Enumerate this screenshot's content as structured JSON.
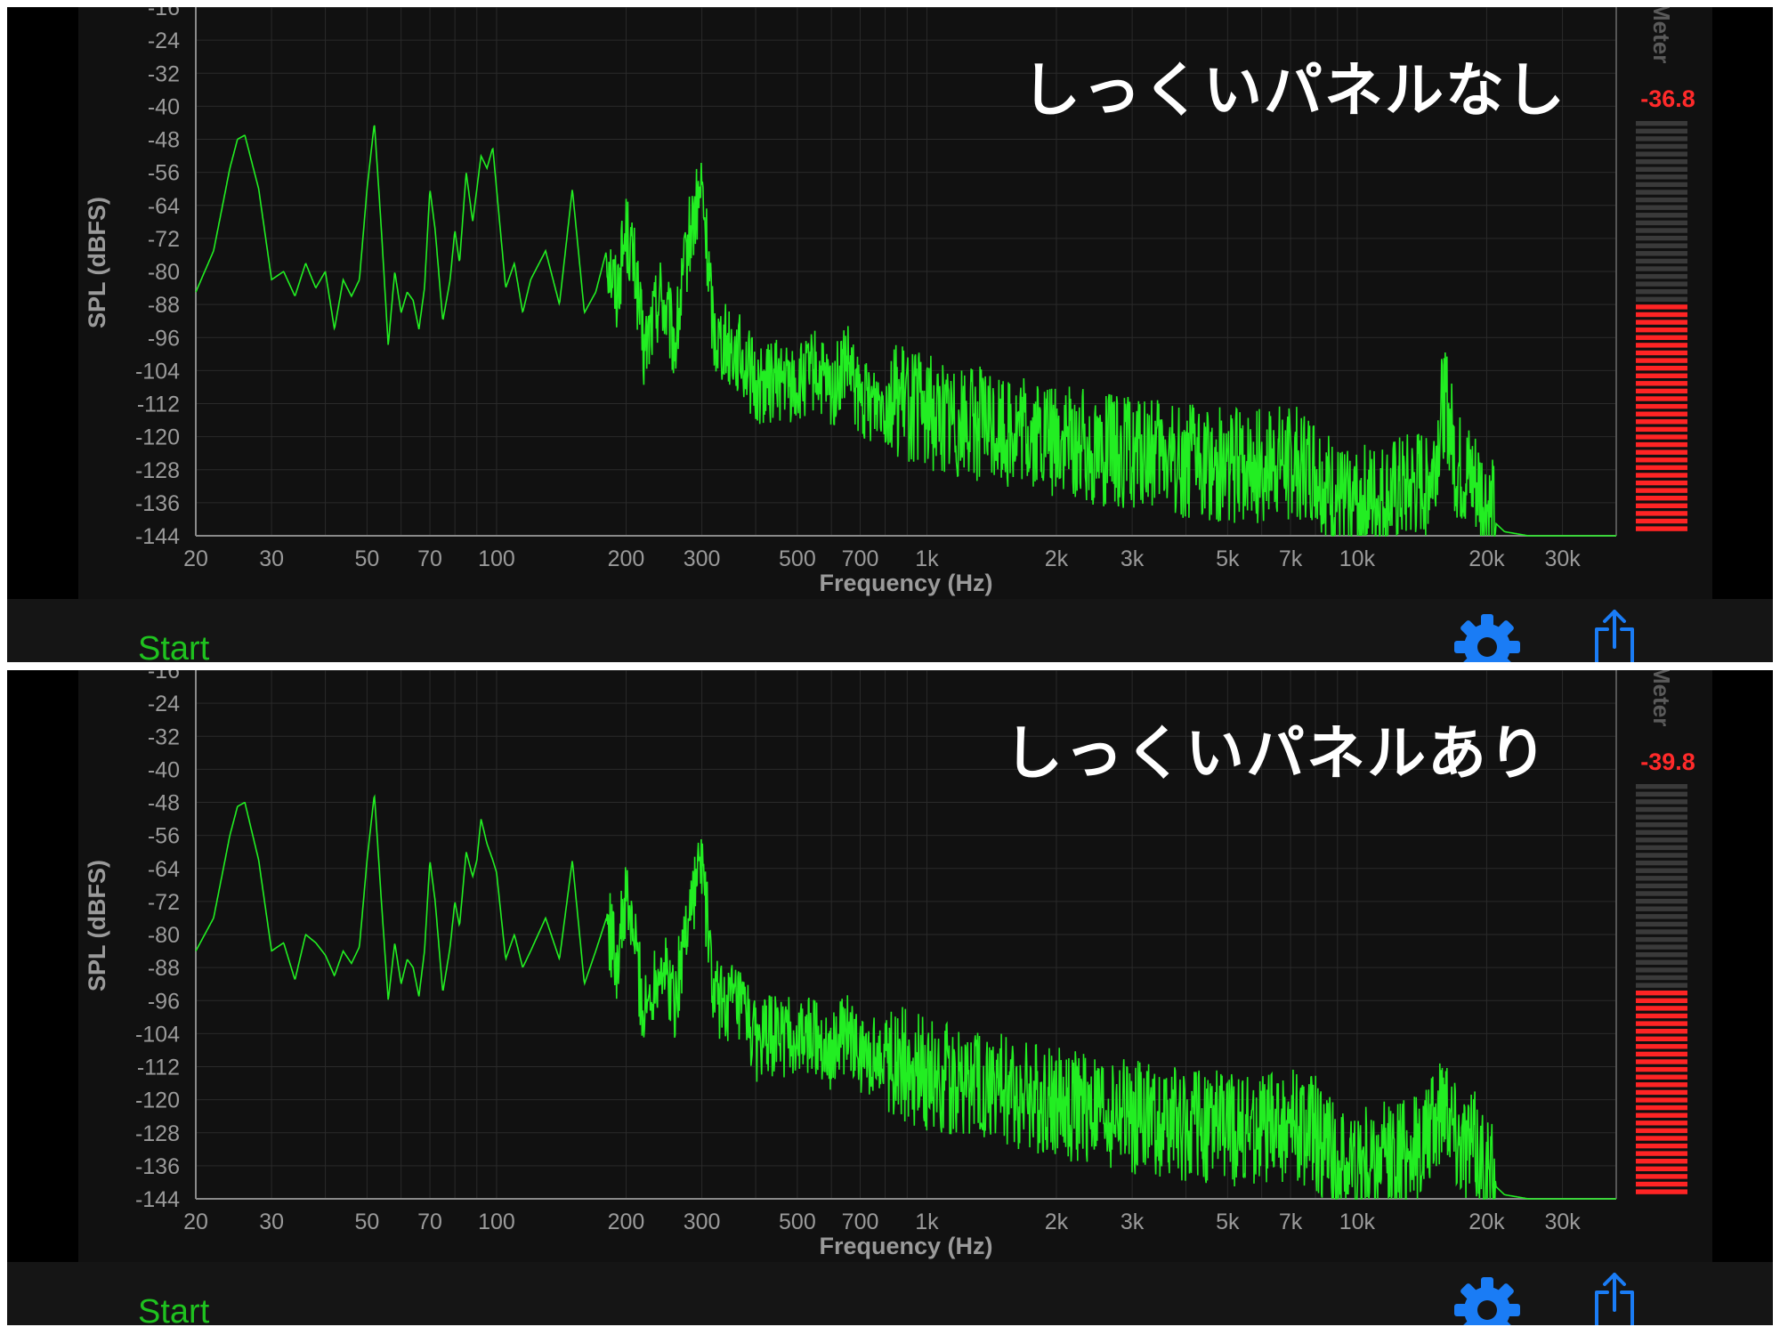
{
  "panels": [
    {
      "title": "しっくいパネルなし",
      "meter_label": "Meter (dBFS)",
      "meter_value": "-36.8",
      "meter_level_db": -36.8,
      "start_label": "Start"
    },
    {
      "title": "しっくいパネルあり",
      "meter_label": "Meter (dBFS)",
      "meter_value": "-39.8",
      "meter_level_db": -39.8,
      "start_label": "Start"
    }
  ],
  "colors": {
    "trace": "#22ee22",
    "grid": "#2a2a2a",
    "axis_text": "#9a9a9a",
    "meter_on": "#ff2424",
    "meter_off": "#3a3a3a",
    "icon_blue": "#1a7cf5",
    "start_green": "#1fc21f"
  },
  "icons": [
    "gear-icon",
    "share-icon"
  ],
  "chart_data": [
    {
      "type": "line",
      "xlabel": "Frequency (Hz)",
      "ylabel": "SPL (dBFS)",
      "x_scale": "log",
      "xlim": [
        20,
        40000
      ],
      "ylim": [
        -144,
        -16
      ],
      "x_ticks": [
        20,
        30,
        50,
        70,
        100,
        200,
        300,
        500,
        700,
        1000,
        2000,
        3000,
        5000,
        7000,
        10000,
        20000,
        30000
      ],
      "x_tick_labels": [
        "20",
        "30",
        "50",
        "70",
        "100",
        "200",
        "300",
        "500",
        "700",
        "1k",
        "2k",
        "3k",
        "5k",
        "7k",
        "10k",
        "20k",
        "30k"
      ],
      "y_ticks": [
        -16,
        -24,
        -32,
        -40,
        -48,
        -56,
        -64,
        -72,
        -80,
        -88,
        -96,
        -104,
        -112,
        -120,
        -128,
        -136,
        -144
      ],
      "grid": true,
      "series": [
        {
          "x": [
            20,
            22,
            24,
            25,
            26,
            28,
            30,
            32,
            34,
            36,
            38,
            40,
            42,
            44,
            46,
            48,
            50,
            52,
            54,
            56,
            58,
            60,
            62,
            64,
            66,
            68,
            70,
            72,
            75,
            78,
            80,
            82,
            85,
            88,
            90,
            92,
            95,
            98,
            100,
            105,
            110,
            115,
            120,
            130,
            140,
            150,
            160,
            170,
            180,
            190,
            200,
            210,
            220,
            240,
            260,
            280,
            300,
            320,
            350,
            380,
            400,
            450,
            500,
            550,
            600,
            650,
            700,
            800,
            900,
            1000,
            1200,
            1500,
            2000,
            2500,
            3000,
            4000,
            5000,
            6000,
            7000,
            8000,
            9000,
            10000,
            12000,
            14000,
            15000,
            16000,
            17000,
            18000,
            19000,
            20000,
            21000,
            22000,
            25000,
            30000,
            40000
          ],
          "y": [
            -85,
            -75,
            -55,
            -48,
            -47,
            -60,
            -82,
            -80,
            -86,
            -78,
            -84,
            -80,
            -94,
            -82,
            -86,
            -82,
            -60,
            -44,
            -70,
            -98,
            -80,
            -90,
            -85,
            -87,
            -94,
            -84,
            -60,
            -70,
            -92,
            -82,
            -70,
            -78,
            -56,
            -68,
            -60,
            -52,
            -55,
            -50,
            -60,
            -84,
            -78,
            -90,
            -82,
            -75,
            -88,
            -60,
            -90,
            -85,
            -75,
            -85,
            -70,
            -80,
            -100,
            -85,
            -98,
            -72,
            -60,
            -95,
            -98,
            -102,
            -108,
            -106,
            -108,
            -104,
            -110,
            -102,
            -112,
            -110,
            -112,
            -114,
            -116,
            -118,
            -121,
            -123,
            -124,
            -126,
            -127,
            -127,
            -126,
            -128,
            -136,
            -136,
            -135,
            -132,
            -128,
            -110,
            -128,
            -130,
            -132,
            -137,
            -141,
            -143,
            -144,
            -144,
            -144
          ],
          "noise_amplitude": 10
        }
      ]
    },
    {
      "type": "line",
      "xlabel": "Frequency (Hz)",
      "ylabel": "SPL (dBFS)",
      "x_scale": "log",
      "xlim": [
        20,
        40000
      ],
      "ylim": [
        -144,
        -16
      ],
      "x_ticks": [
        20,
        30,
        50,
        70,
        100,
        200,
        300,
        500,
        700,
        1000,
        2000,
        3000,
        5000,
        7000,
        10000,
        20000,
        30000
      ],
      "x_tick_labels": [
        "20",
        "30",
        "50",
        "70",
        "100",
        "200",
        "300",
        "500",
        "700",
        "1k",
        "2k",
        "3k",
        "5k",
        "7k",
        "10k",
        "20k",
        "30k"
      ],
      "y_ticks": [
        -16,
        -24,
        -32,
        -40,
        -48,
        -56,
        -64,
        -72,
        -80,
        -88,
        -96,
        -104,
        -112,
        -120,
        -128,
        -136,
        -144
      ],
      "grid": true,
      "series": [
        {
          "x": [
            20,
            22,
            24,
            25,
            26,
            28,
            30,
            32,
            34,
            36,
            38,
            40,
            42,
            44,
            46,
            48,
            50,
            52,
            54,
            56,
            58,
            60,
            62,
            64,
            66,
            68,
            70,
            72,
            75,
            78,
            80,
            82,
            85,
            88,
            90,
            92,
            95,
            98,
            100,
            105,
            110,
            115,
            120,
            130,
            140,
            150,
            160,
            170,
            180,
            190,
            200,
            210,
            220,
            240,
            260,
            280,
            300,
            320,
            350,
            380,
            400,
            450,
            500,
            550,
            600,
            650,
            700,
            800,
            900,
            1000,
            1200,
            1500,
            2000,
            2500,
            3000,
            4000,
            5000,
            6000,
            7000,
            8000,
            9000,
            10000,
            12000,
            14000,
            15000,
            16000,
            17000,
            18000,
            19000,
            20000,
            21000,
            22000,
            25000,
            30000,
            40000
          ],
          "y": [
            -84,
            -76,
            -56,
            -49,
            -48,
            -62,
            -84,
            -82,
            -91,
            -80,
            -82,
            -85,
            -90,
            -84,
            -87,
            -83,
            -62,
            -46,
            -72,
            -96,
            -82,
            -92,
            -86,
            -88,
            -95,
            -84,
            -62,
            -72,
            -94,
            -83,
            -72,
            -78,
            -60,
            -66,
            -62,
            -52,
            -58,
            -62,
            -65,
            -86,
            -80,
            -88,
            -84,
            -76,
            -86,
            -62,
            -92,
            -84,
            -76,
            -86,
            -72,
            -82,
            -100,
            -86,
            -96,
            -74,
            -62,
            -96,
            -96,
            -100,
            -106,
            -104,
            -106,
            -104,
            -108,
            -104,
            -110,
            -109,
            -112,
            -114,
            -116,
            -118,
            -121,
            -123,
            -124,
            -126,
            -127,
            -127,
            -126,
            -128,
            -136,
            -136,
            -134,
            -131,
            -128,
            -118,
            -128,
            -130,
            -132,
            -137,
            -141,
            -143,
            -144,
            -144,
            -144
          ],
          "noise_amplitude": 10
        }
      ]
    }
  ]
}
